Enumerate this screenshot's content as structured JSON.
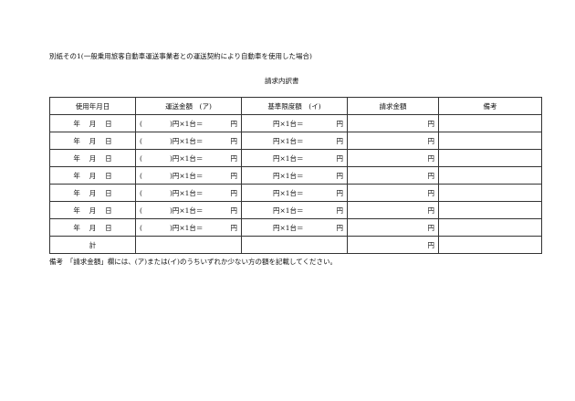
{
  "heading": "別紙その1(一般乗用旅客自動車運送事業者との運送契約により自動車を使用した場合)",
  "title": "請求内訳書",
  "headers": [
    "使用年月日",
    "運送金額　(ア)",
    "基準限度額　(イ)",
    "請求金額",
    "備考"
  ],
  "row": {
    "date": "年　 月　 日",
    "transport_open": "(",
    "transport_mid": ")円×1台＝",
    "yen": "円",
    "limit_mid": "円×1台＝"
  },
  "total_label": "計",
  "note": "備考　「請求金額」欄には、(ア)または(イ)のうちいずれか少ない方の額を記載してください。"
}
